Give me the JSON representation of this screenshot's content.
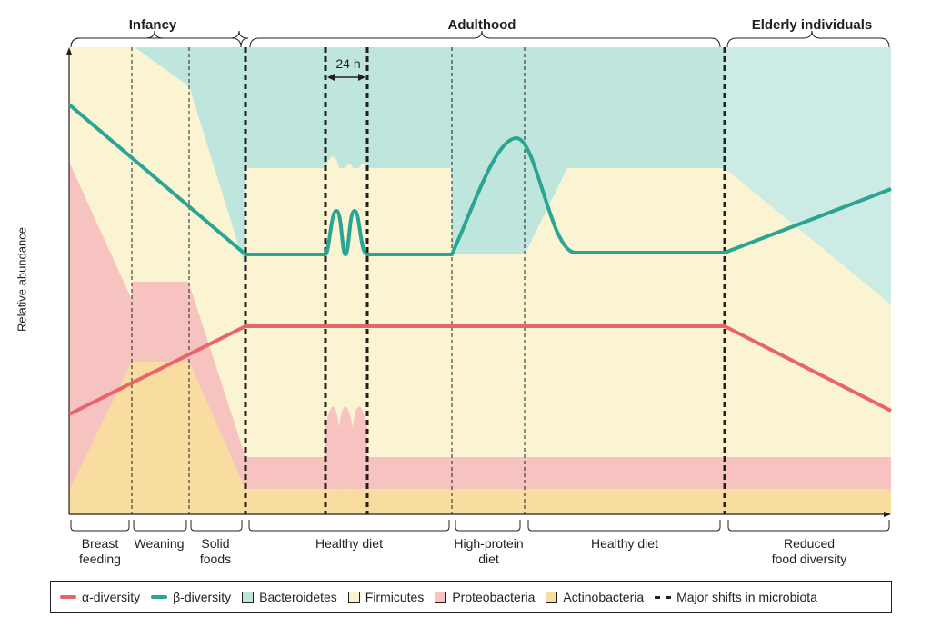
{
  "stages": {
    "infancy": "Infancy",
    "adulthood": "Adulthood",
    "elderly": "Elderly individuals"
  },
  "y_axis_label": "Relative abundance",
  "period_label": "24 h",
  "periods": {
    "breast_feeding": "Breast\nfeeding",
    "weaning": "Weaning",
    "solid_foods": "Solid\nfoods",
    "healthy_diet_1": "Healthy diet",
    "high_protein": "High-protein\ndiet",
    "healthy_diet_2": "Healthy diet",
    "reduced_diversity": "Reduced\nfood diversity"
  },
  "legend": {
    "alpha": "α-diversity",
    "beta": "β-diversity",
    "bacteroidetes": "Bacteroidetes",
    "firmicutes": "Firmicutes",
    "proteobacteria": "Proteobacteria",
    "actinobacteria": "Actinobacteria",
    "major_shifts": "Major shifts in microbiota"
  },
  "colors": {
    "alpha": "#e8646b",
    "beta": "#2aa593",
    "bacteroidetes": "#bfe6dd",
    "firmicutes": "#fbf4d3",
    "proteobacteria": "#f6c3c1",
    "actinobacteria": "#f8dca0"
  }
}
